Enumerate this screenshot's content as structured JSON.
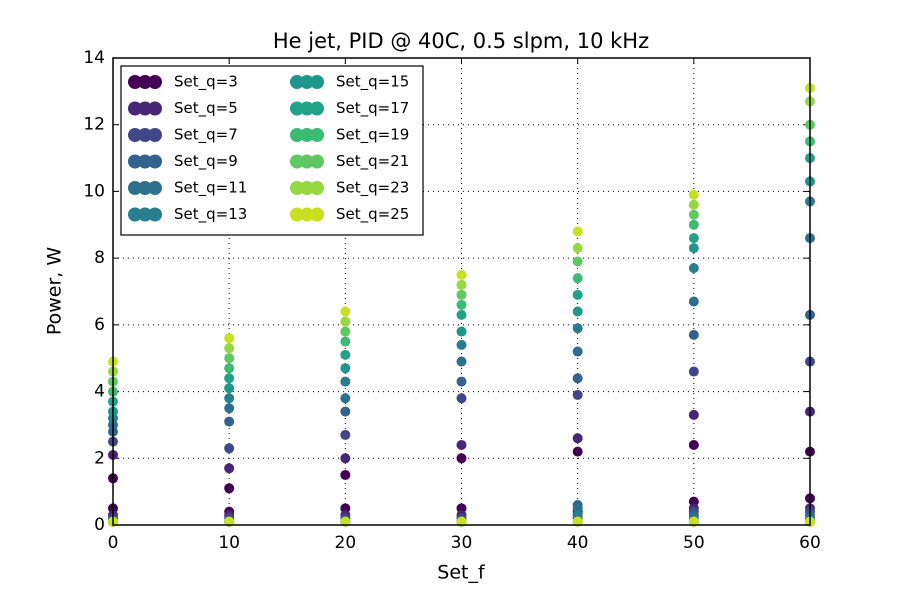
{
  "chart_data": {
    "type": "scatter",
    "title": "He jet, PID @ 40C, 0.5 slpm, 10 kHz",
    "x_label": "Set_f",
    "y_label": "Power, W",
    "xlim": [
      0,
      60
    ],
    "ylim": [
      0,
      14
    ],
    "xticks": [
      0,
      10,
      20,
      30,
      40,
      50,
      60
    ],
    "yticks": [
      0,
      2,
      4,
      6,
      8,
      10,
      12,
      14
    ],
    "grid": true,
    "legend": "upper left",
    "series": [
      {
        "name": "Set_q=3",
        "color": "#440154",
        "x": [
          0,
          0,
          10,
          10,
          20,
          20,
          30,
          30,
          40,
          40,
          50,
          50,
          60,
          60
        ],
        "values": [
          0.5,
          1.4,
          0.4,
          1.1,
          0.5,
          1.5,
          0.5,
          2.0,
          0.4,
          2.2,
          0.7,
          2.4,
          0.8,
          2.2
        ]
      },
      {
        "name": "Set_q=5",
        "color": "#482677",
        "x": [
          0,
          0,
          10,
          10,
          20,
          20,
          30,
          30,
          40,
          40,
          50,
          50,
          60,
          60
        ],
        "values": [
          0.3,
          2.1,
          0.3,
          1.7,
          0.3,
          2.0,
          0.3,
          2.4,
          0.3,
          2.6,
          0.5,
          3.3,
          0.5,
          3.4
        ]
      },
      {
        "name": "Set_q=7",
        "color": "#404788",
        "x": [
          0,
          0,
          10,
          10,
          20,
          20,
          30,
          30,
          40,
          40,
          50,
          50,
          60,
          60
        ],
        "values": [
          0.2,
          2.5,
          0.2,
          2.3,
          0.2,
          2.7,
          0.2,
          3.8,
          0.2,
          3.9,
          0.4,
          4.6,
          0.4,
          4.9
        ]
      },
      {
        "name": "Set_q=9",
        "color": "#33638d",
        "x": [
          0,
          0,
          10,
          10,
          20,
          20,
          30,
          30,
          40,
          40,
          50,
          50,
          60,
          60
        ],
        "values": [
          0.1,
          2.8,
          0.1,
          3.1,
          0.1,
          3.4,
          0.1,
          4.3,
          0.6,
          4.4,
          0.3,
          5.7,
          0.3,
          6.3
        ]
      },
      {
        "name": "Set_q=11",
        "color": "#2d708e",
        "x": [
          0,
          0,
          10,
          10,
          20,
          20,
          30,
          30,
          40,
          40,
          50,
          50,
          60,
          60
        ],
        "values": [
          0.1,
          3.0,
          0.1,
          3.5,
          0.1,
          3.8,
          0.1,
          4.9,
          0.5,
          5.2,
          0.2,
          6.7,
          0.2,
          8.6
        ]
      },
      {
        "name": "Set_q=13",
        "color": "#287d8e",
        "x": [
          0,
          0,
          10,
          10,
          20,
          20,
          30,
          30,
          40,
          40,
          50,
          50,
          60,
          60
        ],
        "values": [
          0.1,
          3.2,
          0.1,
          3.8,
          0.1,
          4.3,
          0.1,
          5.4,
          0.3,
          5.9,
          0.1,
          7.7,
          0.1,
          9.7
        ]
      },
      {
        "name": "Set_q=15",
        "color": "#1f968b",
        "x": [
          0,
          0,
          10,
          10,
          20,
          20,
          30,
          30,
          40,
          40,
          50,
          50,
          60,
          60
        ],
        "values": [
          0.1,
          3.4,
          0.1,
          4.1,
          0.1,
          4.7,
          0.1,
          5.8,
          0.1,
          6.4,
          0.1,
          8.3,
          0.1,
          10.3
        ]
      },
      {
        "name": "Set_q=17",
        "color": "#20a386",
        "x": [
          0,
          0,
          10,
          10,
          20,
          20,
          30,
          30,
          40,
          40,
          50,
          50,
          60,
          60
        ],
        "values": [
          0.1,
          3.7,
          0.1,
          4.4,
          0.1,
          5.1,
          0.1,
          6.3,
          0.1,
          6.9,
          0.1,
          8.6,
          0.1,
          11.0
        ]
      },
      {
        "name": "Set_q=19",
        "color": "#3cbb75",
        "x": [
          0,
          0,
          10,
          10,
          20,
          20,
          30,
          30,
          40,
          40,
          50,
          50,
          60,
          60
        ],
        "values": [
          0.1,
          4.0,
          0.1,
          4.7,
          0.1,
          5.5,
          0.1,
          6.6,
          0.1,
          7.4,
          0.1,
          9.0,
          0.1,
          11.5
        ]
      },
      {
        "name": "Set_q=21",
        "color": "#5ec962",
        "x": [
          0,
          0,
          10,
          10,
          20,
          20,
          30,
          30,
          40,
          40,
          50,
          50,
          60,
          60
        ],
        "values": [
          0.1,
          4.3,
          0.1,
          5.0,
          0.1,
          5.8,
          0.1,
          6.9,
          0.1,
          7.9,
          0.1,
          9.3,
          0.1,
          12.0
        ]
      },
      {
        "name": "Set_q=23",
        "color": "#95d840",
        "x": [
          0,
          0,
          10,
          10,
          20,
          20,
          30,
          30,
          40,
          40,
          50,
          50,
          60,
          60
        ],
        "values": [
          0.1,
          4.6,
          0.1,
          5.3,
          0.1,
          6.1,
          0.1,
          7.2,
          0.1,
          8.3,
          0.1,
          9.6,
          0.1,
          12.7
        ]
      },
      {
        "name": "Set_q=25",
        "color": "#c7e020",
        "x": [
          0,
          0,
          10,
          10,
          20,
          20,
          30,
          30,
          40,
          40,
          50,
          50,
          60,
          60
        ],
        "values": [
          0.1,
          4.9,
          0.1,
          5.6,
          0.1,
          6.4,
          0.1,
          7.5,
          0.1,
          8.8,
          0.1,
          9.9,
          0.1,
          13.1
        ]
      }
    ]
  }
}
